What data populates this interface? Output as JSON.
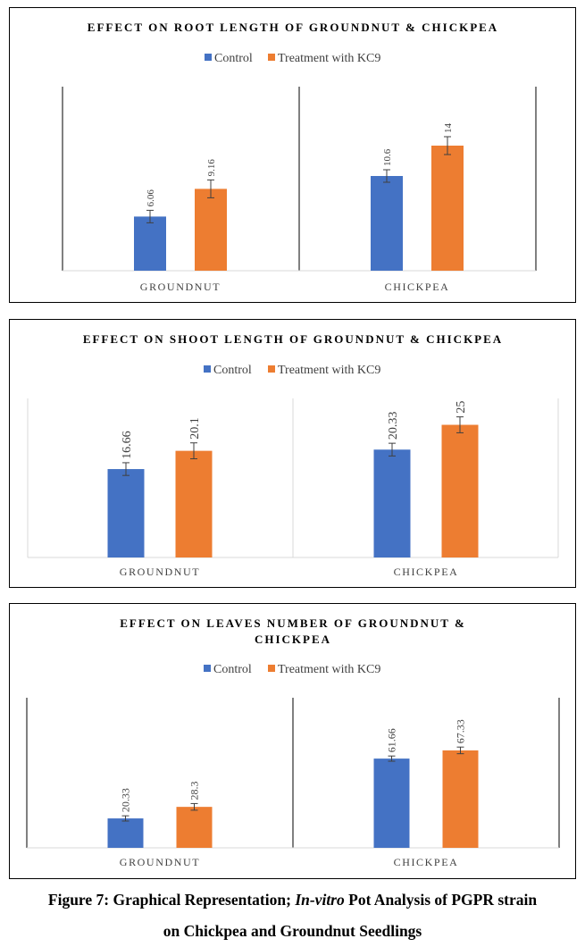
{
  "chart_data": [
    {
      "type": "bar",
      "title": "EFFECT ON ROOT LENGTH OF GROUNDNUT & CHICKPEA",
      "title_lines": [
        "EFFECT ON ROOT LENGTH OF GROUNDNUT & CHICKPEA"
      ],
      "categories": [
        "GROUNDNUT",
        "CHICKPEA"
      ],
      "series": [
        {
          "name": "Control",
          "color": "#4472C4",
          "values": [
            6.06,
            10.6
          ],
          "errors": [
            0.7,
            0.7
          ],
          "labels": [
            "6.06",
            "10.6"
          ]
        },
        {
          "name": "Treatment with KC9",
          "color": "#ED7D31",
          "values": [
            9.16,
            14
          ],
          "errors": [
            1.0,
            1.0
          ],
          "labels": [
            "9.16",
            "14"
          ]
        }
      ],
      "ylim": [
        0,
        20
      ],
      "xlabel": "",
      "ylabel": "",
      "legend": "top"
    },
    {
      "type": "bar",
      "title": "EFFECT ON SHOOT LENGTH OF GROUNDNUT & CHICKPEA",
      "title_lines": [
        "EFFECT ON SHOOT LENGTH OF GROUNDNUT & CHICKPEA"
      ],
      "categories": [
        "GROUNDNUT",
        "CHICKPEA"
      ],
      "series": [
        {
          "name": "Control",
          "color": "#4472C4",
          "values": [
            16.66,
            20.33
          ],
          "errors": [
            1.2,
            1.2
          ],
          "labels": [
            "16.66",
            "20.33"
          ]
        },
        {
          "name": "Treatment with KC9",
          "color": "#ED7D31",
          "values": [
            20.1,
            25
          ],
          "errors": [
            1.5,
            1.5
          ],
          "labels": [
            "20.1",
            "25"
          ]
        }
      ],
      "ylim": [
        0,
        33
      ],
      "xlabel": "",
      "ylabel": "",
      "legend": "top"
    },
    {
      "type": "bar",
      "title": "EFFECT ON LEAVES NUMBER OF GROUNDNUT & CHICKPEA",
      "title_lines": [
        "EFFECT ON LEAVES NUMBER OF GROUNDNUT &",
        "CHICKPEA"
      ],
      "categories": [
        "GROUNDNUT",
        "CHICKPEA"
      ],
      "series": [
        {
          "name": "Control",
          "color": "#4472C4",
          "values": [
            20.33,
            61.66
          ],
          "errors": [
            1.8,
            1.8
          ],
          "labels": [
            "20.33",
            "61.66"
          ]
        },
        {
          "name": "Treatment with KC9",
          "color": "#ED7D31",
          "values": [
            28.3,
            67.33
          ],
          "errors": [
            2.3,
            2.3
          ],
          "labels": [
            "28.3",
            "67.33"
          ]
        }
      ],
      "ylim": [
        0,
        100
      ],
      "xlabel": "",
      "ylabel": "",
      "legend": "top"
    }
  ],
  "caption": {
    "line1_prefix": "Figure 7: Graphical Representation; ",
    "line1_italic": "In-vitro",
    "line1_suffix": " Pot Analysis of PGPR strain",
    "line2": "on Chickpea and Groundnut Seedlings"
  }
}
